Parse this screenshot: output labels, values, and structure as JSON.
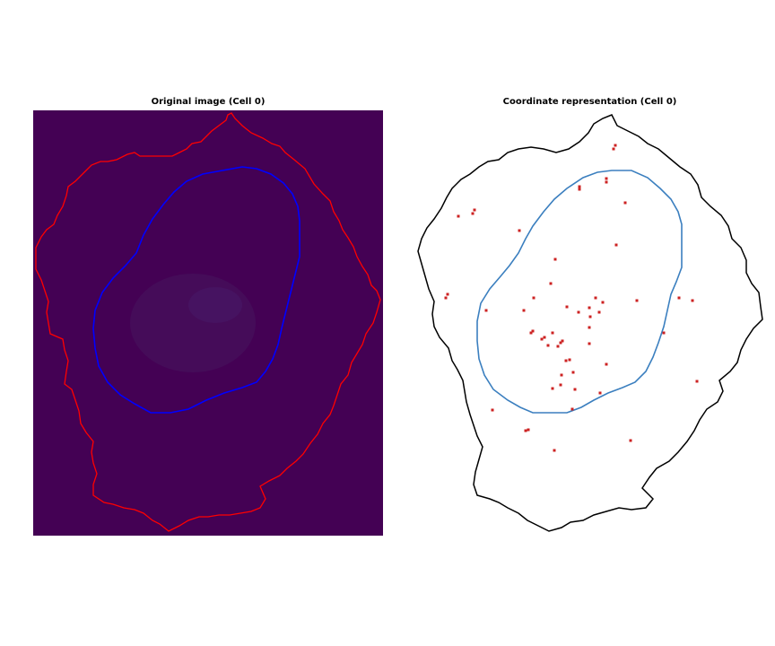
{
  "chart_data": [
    {
      "type": "image",
      "title": "Original image (Cell 0)",
      "background_color": "#440154",
      "cell_outline_color": "#ff0000",
      "nucleus_outline_color": "#0000ff",
      "axes": "off"
    },
    {
      "type": "scatter",
      "title": "Coordinate representation (Cell 0)",
      "cell_outline_color": "#000000",
      "nucleus_outline_color": "#3b7fbf",
      "point_color": "#cc2222",
      "axes": "off",
      "points": [
        [
          686,
          162
        ],
        [
          684,
          166
        ],
        [
          646,
          208
        ],
        [
          646,
          211
        ],
        [
          676,
          199
        ],
        [
          676,
          203
        ],
        [
          697,
          226
        ],
        [
          511,
          241
        ],
        [
          529,
          234
        ],
        [
          527,
          238
        ],
        [
          579,
          257
        ],
        [
          687,
          273
        ],
        [
          619,
          289
        ],
        [
          614,
          316
        ],
        [
          499,
          328
        ],
        [
          497,
          332
        ],
        [
          542,
          346
        ],
        [
          584,
          346
        ],
        [
          595,
          332
        ],
        [
          632,
          342
        ],
        [
          645,
          348
        ],
        [
          657,
          343
        ],
        [
          664,
          332
        ],
        [
          672,
          337
        ],
        [
          668,
          348
        ],
        [
          658,
          353
        ],
        [
          710,
          335
        ],
        [
          757,
          332
        ],
        [
          772,
          335
        ],
        [
          592,
          371
        ],
        [
          594,
          369
        ],
        [
          604,
          378
        ],
        [
          607,
          376
        ],
        [
          616,
          371
        ],
        [
          611,
          385
        ],
        [
          622,
          386
        ],
        [
          627,
          380
        ],
        [
          625,
          382
        ],
        [
          657,
          365
        ],
        [
          657,
          383
        ],
        [
          631,
          402
        ],
        [
          635,
          401
        ],
        [
          639,
          415
        ],
        [
          626,
          418
        ],
        [
          676,
          406
        ],
        [
          625,
          429
        ],
        [
          616,
          433
        ],
        [
          641,
          434
        ],
        [
          669,
          438
        ],
        [
          777,
          425
        ],
        [
          740,
          371
        ],
        [
          638,
          456
        ],
        [
          549,
          457
        ],
        [
          586,
          480
        ],
        [
          589,
          479
        ],
        [
          618,
          502
        ],
        [
          703,
          491
        ]
      ]
    }
  ]
}
